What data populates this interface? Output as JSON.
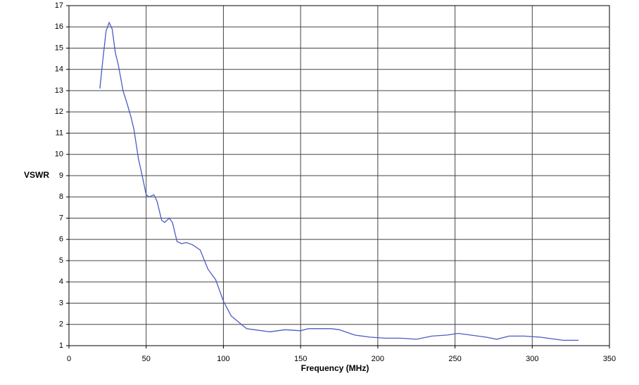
{
  "chart_data": {
    "type": "line",
    "x_label": "Frequency (MHz)",
    "y_label": "VSWR",
    "x": [
      20,
      22,
      24,
      26,
      28,
      30,
      32,
      35,
      38,
      40,
      42,
      45,
      48,
      50,
      52,
      55,
      57,
      60,
      62,
      65,
      67,
      70,
      73,
      76,
      80,
      85,
      90,
      95,
      100,
      105,
      110,
      115,
      120,
      130,
      140,
      150,
      155,
      170,
      175,
      185,
      195,
      205,
      215,
      225,
      235,
      245,
      252,
      260,
      270,
      277,
      285,
      295,
      305,
      315,
      320,
      330
    ],
    "values": [
      13.1,
      14.5,
      15.8,
      16.2,
      15.9,
      14.8,
      14.2,
      13.0,
      12.3,
      11.8,
      11.2,
      9.8,
      8.8,
      8.1,
      8.0,
      8.1,
      7.8,
      6.9,
      6.8,
      7.0,
      6.8,
      5.9,
      5.8,
      5.85,
      5.75,
      5.5,
      4.6,
      4.1,
      3.1,
      2.4,
      2.1,
      1.8,
      1.75,
      1.65,
      1.75,
      1.7,
      1.8,
      1.8,
      1.75,
      1.5,
      1.4,
      1.35,
      1.35,
      1.3,
      1.45,
      1.5,
      1.58,
      1.5,
      1.4,
      1.3,
      1.45,
      1.45,
      1.4,
      1.3,
      1.25,
      1.25
    ],
    "color": "#4a5cc4",
    "xlim": [
      0,
      350
    ],
    "ylim": [
      1,
      17
    ],
    "xticks": [
      0,
      50,
      100,
      150,
      200,
      250,
      300,
      350
    ],
    "yticks": [
      1,
      2,
      3,
      4,
      5,
      6,
      7,
      8,
      9,
      10,
      11,
      12,
      13,
      14,
      15,
      16,
      17
    ],
    "grid": true
  }
}
